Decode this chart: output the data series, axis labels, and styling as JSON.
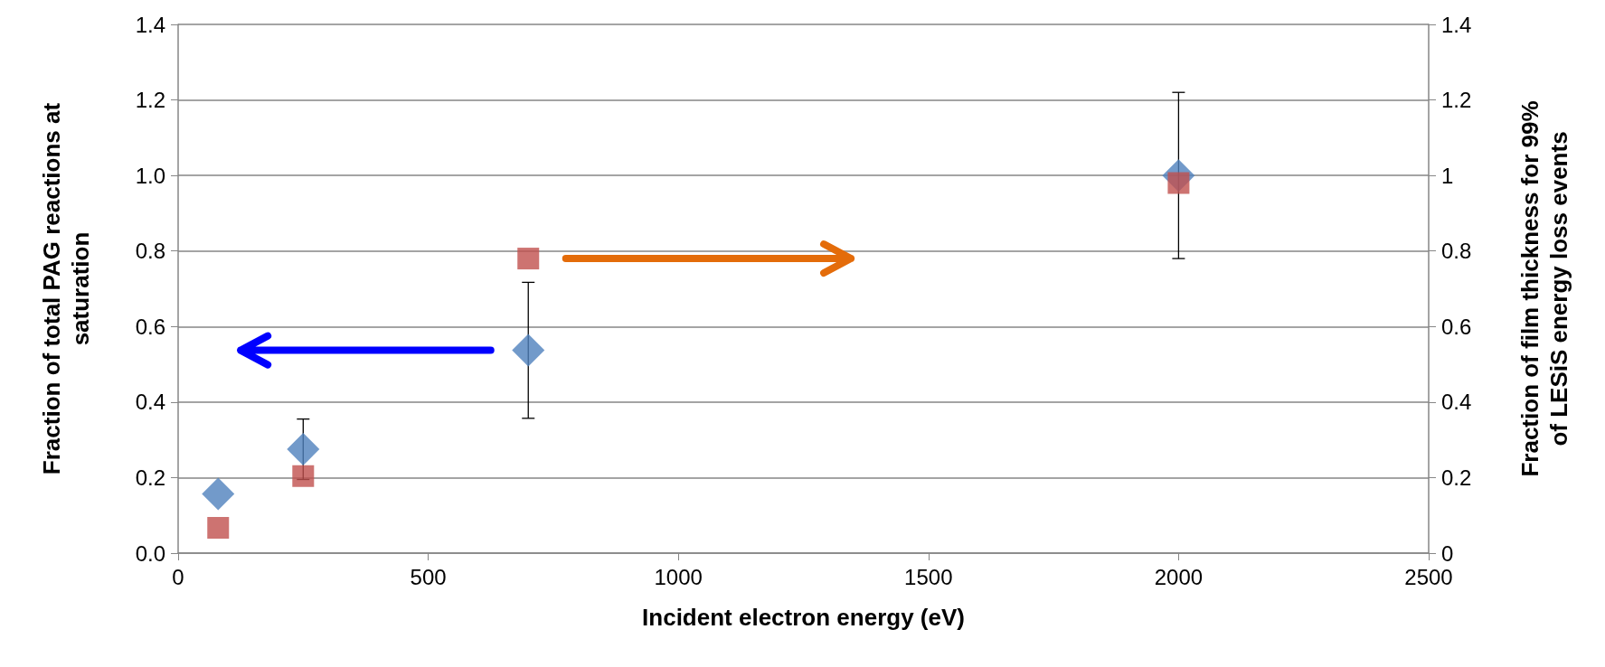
{
  "chart_data": {
    "type": "scatter",
    "xlabel": "Incident electron energy (eV)",
    "ylabel": "Fraction of total PAG reactions at saturation",
    "y2label": "Fraction of film thickness for 99% of LESiS energy loss events",
    "x": [
      80,
      250,
      700,
      2000
    ],
    "series": [
      {
        "color": "#4f81bd",
        "marker": "diamond",
        "values": [
          0.157,
          0.275,
          0.537,
          1.0
        ],
        "errors": [
          null,
          0.08,
          0.18,
          0.22
        ]
      },
      {
        "color": "#c0504d",
        "marker": "square",
        "axis": "y2",
        "values": [
          0.067,
          0.204,
          0.78,
          0.98
        ]
      }
    ],
    "xlim": [
      0,
      2500
    ],
    "xticks": [
      0,
      500,
      1000,
      1500,
      2000,
      2500
    ],
    "ylim": [
      0,
      1.4
    ],
    "yticks": [
      {
        "value": 0,
        "label": "0.0"
      },
      {
        "value": 0.2,
        "label": "0.2"
      },
      {
        "value": 0.4,
        "label": "0.4"
      },
      {
        "value": 0.6,
        "label": "0.6"
      },
      {
        "value": 0.8,
        "label": "0.8"
      },
      {
        "value": 1.0,
        "label": "1.0"
      },
      {
        "value": 1.2,
        "label": "1.2"
      },
      {
        "value": 1.4,
        "label": "1.4"
      }
    ],
    "y2lim": [
      0,
      1.4
    ],
    "y2ticks": [
      0,
      0.2,
      0.4,
      0.6,
      0.8,
      1,
      1.2,
      1.4
    ],
    "grid": "y"
  }
}
